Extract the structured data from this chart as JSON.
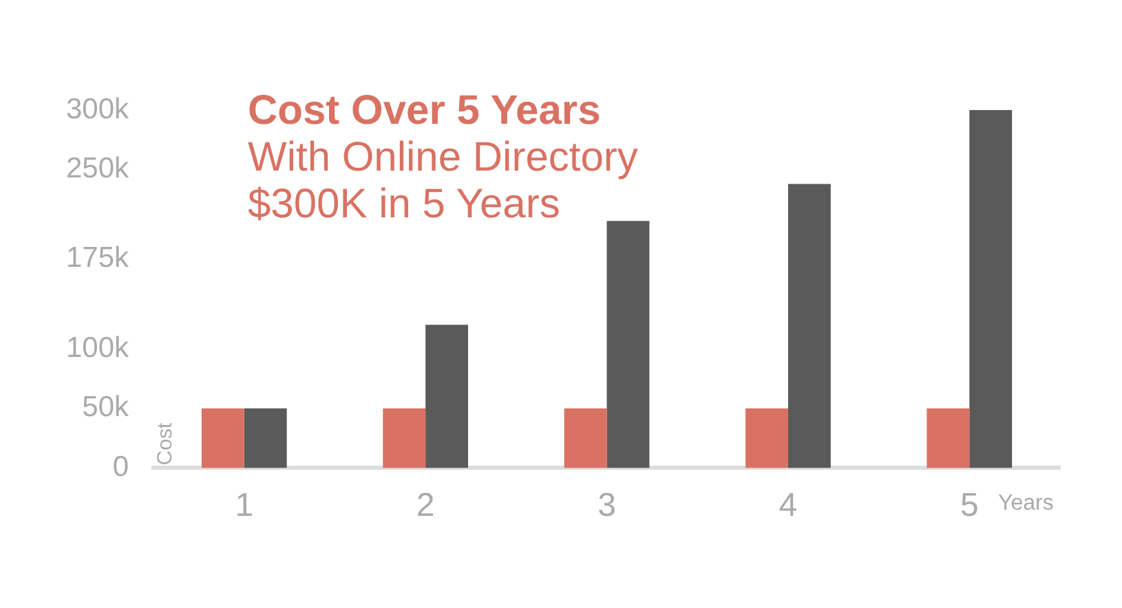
{
  "chart_data": {
    "type": "bar",
    "title": "Cost Over 5 Years",
    "subtitle": "With Online Directory\n$300K in 5 Years",
    "xlabel": "Years",
    "ylabel": "Cost",
    "categories": [
      "1",
      "2",
      "3",
      "4",
      "5"
    ],
    "series": [
      {
        "color": "#d97263",
        "values": [
          50,
          50,
          50,
          50,
          50
        ]
      },
      {
        "color": "#5a5a5a",
        "values": [
          50,
          120,
          207,
          238,
          300
        ]
      }
    ],
    "ylim": [
      0,
      300
    ],
    "yticks": [
      {
        "value": 0,
        "label": "0"
      },
      {
        "value": 50,
        "label": "50k"
      },
      {
        "value": 100,
        "label": "100k"
      },
      {
        "value": 175,
        "label": "175k"
      },
      {
        "value": 250,
        "label": "250k"
      },
      {
        "value": 300,
        "label": "300k"
      }
    ],
    "grid": false,
    "legend": false
  }
}
